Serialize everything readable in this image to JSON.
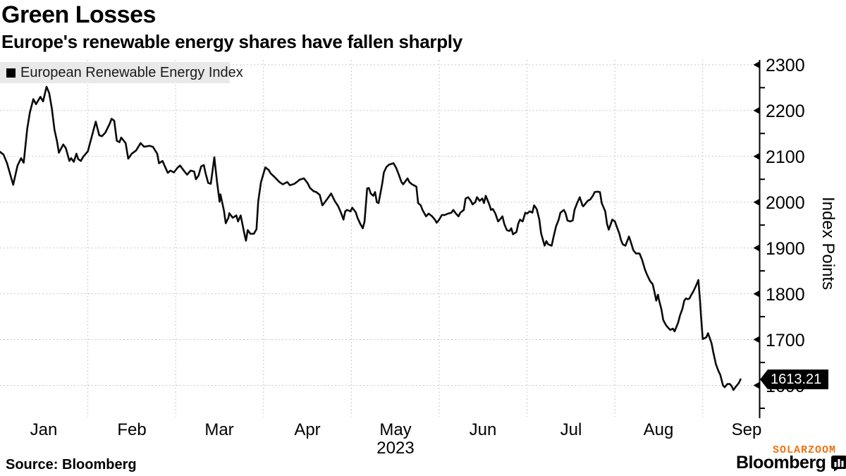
{
  "header": {
    "title": "Green Losses",
    "subtitle": "Europe's renewable energy shares have fallen sharply"
  },
  "legend": {
    "series_label": "European Renewable Energy Index"
  },
  "y_axis": {
    "label": "Index Points",
    "tick_labels": [
      "2300",
      "2200",
      "2100",
      "2000",
      "1900",
      "1800",
      "1700",
      "1600"
    ],
    "last_value_label": "1613.21"
  },
  "x_axis": {
    "tick_labels": [
      "Jan",
      "Feb",
      "Mar",
      "Apr",
      "May",
      "Jun",
      "Jul",
      "Aug",
      "Sep"
    ],
    "year_label": "2023"
  },
  "footer": {
    "source": "Source: Bloomberg",
    "watermark": "SOLARZOOM",
    "brand": "Bloomberg"
  },
  "colors": {
    "line": "#0a0a0a",
    "grid": "#c9c9c9",
    "legend_bg": "#e9e9e9",
    "badge_bg": "#000000",
    "badge_text": "#ffffff",
    "watermark_orange": "#ee7211"
  },
  "chart_data": {
    "type": "line",
    "title": "Green Losses",
    "subtitle": "Europe's renewable energy shares have fallen sharply",
    "series_name": "European Renewable Energy Index",
    "ylabel": "Index Points",
    "ylim": [
      1530,
      2330
    ],
    "y_ticks": [
      1600,
      1700,
      1800,
      1900,
      2000,
      2100,
      2200,
      2300
    ],
    "y_minor_ticks": [
      1550,
      1650,
      1750,
      1850,
      1950,
      2050,
      2150,
      2250
    ],
    "x_months": [
      "Jan",
      "Feb",
      "Mar",
      "Apr",
      "May",
      "Jun",
      "Jul",
      "Aug",
      "Sep"
    ],
    "year": "2023",
    "grid": true,
    "legend_position": "top-left",
    "last_value": 1613.21,
    "x_unit": "fractional month index, 0 = Jan 1 2023",
    "points": [
      [
        0.0,
        2110
      ],
      [
        0.04,
        2104
      ],
      [
        0.08,
        2085
      ],
      [
        0.15,
        2038
      ],
      [
        0.2,
        2080
      ],
      [
        0.24,
        2096
      ],
      [
        0.27,
        2086
      ],
      [
        0.31,
        2160
      ],
      [
        0.34,
        2196
      ],
      [
        0.38,
        2225
      ],
      [
        0.41,
        2214
      ],
      [
        0.46,
        2230
      ],
      [
        0.49,
        2220
      ],
      [
        0.53,
        2252
      ],
      [
        0.56,
        2238
      ],
      [
        0.59,
        2205
      ],
      [
        0.62,
        2158
      ],
      [
        0.65,
        2132
      ],
      [
        0.67,
        2108
      ],
      [
        0.72,
        2126
      ],
      [
        0.75,
        2118
      ],
      [
        0.79,
        2090
      ],
      [
        0.81,
        2096
      ],
      [
        0.84,
        2088
      ],
      [
        0.87,
        2106
      ],
      [
        0.89,
        2094
      ],
      [
        0.92,
        2090
      ],
      [
        0.95,
        2100
      ],
      [
        1.0,
        2111
      ],
      [
        1.04,
        2140
      ],
      [
        1.09,
        2176
      ],
      [
        1.13,
        2146
      ],
      [
        1.16,
        2144
      ],
      [
        1.2,
        2152
      ],
      [
        1.25,
        2172
      ],
      [
        1.27,
        2182
      ],
      [
        1.3,
        2178
      ],
      [
        1.33,
        2134
      ],
      [
        1.36,
        2131
      ],
      [
        1.38,
        2141
      ],
      [
        1.43,
        2129
      ],
      [
        1.46,
        2095
      ],
      [
        1.5,
        2106
      ],
      [
        1.55,
        2113
      ],
      [
        1.6,
        2129
      ],
      [
        1.64,
        2121
      ],
      [
        1.7,
        2123
      ],
      [
        1.74,
        2121
      ],
      [
        1.79,
        2106
      ],
      [
        1.81,
        2085
      ],
      [
        1.85,
        2090
      ],
      [
        1.88,
        2077
      ],
      [
        1.91,
        2064
      ],
      [
        1.94,
        2069
      ],
      [
        1.98,
        2065
      ],
      [
        2.02,
        2075
      ],
      [
        2.05,
        2080
      ],
      [
        2.08,
        2072
      ],
      [
        2.1,
        2067
      ],
      [
        2.13,
        2060
      ],
      [
        2.17,
        2069
      ],
      [
        2.21,
        2067
      ],
      [
        2.23,
        2050
      ],
      [
        2.26,
        2058
      ],
      [
        2.29,
        2078
      ],
      [
        2.32,
        2081
      ],
      [
        2.34,
        2063
      ],
      [
        2.37,
        2042
      ],
      [
        2.4,
        2040
      ],
      [
        2.42,
        2069
      ],
      [
        2.44,
        2098
      ],
      [
        2.47,
        2045
      ],
      [
        2.5,
        2001
      ],
      [
        2.51,
        2017
      ],
      [
        2.55,
        1981
      ],
      [
        2.57,
        1954
      ],
      [
        2.6,
        1966
      ],
      [
        2.61,
        1976
      ],
      [
        2.65,
        1966
      ],
      [
        2.69,
        1971
      ],
      [
        2.71,
        1958
      ],
      [
        2.74,
        1971
      ],
      [
        2.78,
        1933
      ],
      [
        2.8,
        1916
      ],
      [
        2.82,
        1939
      ],
      [
        2.85,
        1931
      ],
      [
        2.89,
        1931
      ],
      [
        2.92,
        1941
      ],
      [
        2.94,
        2002
      ],
      [
        2.97,
        2043
      ],
      [
        3.02,
        2076
      ],
      [
        3.06,
        2070
      ],
      [
        3.08,
        2063
      ],
      [
        3.13,
        2054
      ],
      [
        3.18,
        2044
      ],
      [
        3.22,
        2039
      ],
      [
        3.27,
        2044
      ],
      [
        3.3,
        2037
      ],
      [
        3.35,
        2040
      ],
      [
        3.38,
        2044
      ],
      [
        3.41,
        2049
      ],
      [
        3.46,
        2052
      ],
      [
        3.5,
        2042
      ],
      [
        3.53,
        2031
      ],
      [
        3.57,
        2024
      ],
      [
        3.6,
        2022
      ],
      [
        3.64,
        2016
      ],
      [
        3.67,
        1993
      ],
      [
        3.71,
        2003
      ],
      [
        3.74,
        2011
      ],
      [
        3.77,
        2019
      ],
      [
        3.81,
        2003
      ],
      [
        3.85,
        1991
      ],
      [
        3.88,
        1978
      ],
      [
        3.91,
        1962
      ],
      [
        3.93,
        1980
      ],
      [
        3.95,
        1983
      ],
      [
        3.99,
        1980
      ],
      [
        4.01,
        1988
      ],
      [
        4.05,
        1978
      ],
      [
        4.07,
        1966
      ],
      [
        4.1,
        1953
      ],
      [
        4.13,
        1943
      ],
      [
        4.15,
        1958
      ],
      [
        4.18,
        2030
      ],
      [
        4.2,
        2031
      ],
      [
        4.22,
        2019
      ],
      [
        4.25,
        2014
      ],
      [
        4.27,
        2022
      ],
      [
        4.29,
        2000
      ],
      [
        4.31,
        1998
      ],
      [
        4.35,
        2039
      ],
      [
        4.37,
        2065
      ],
      [
        4.4,
        2077
      ],
      [
        4.43,
        2082
      ],
      [
        4.48,
        2085
      ],
      [
        4.51,
        2075
      ],
      [
        4.54,
        2060
      ],
      [
        4.57,
        2044
      ],
      [
        4.59,
        2039
      ],
      [
        4.62,
        2047
      ],
      [
        4.64,
        2052
      ],
      [
        4.66,
        2044
      ],
      [
        4.69,
        2039
      ],
      [
        4.71,
        2037
      ],
      [
        4.74,
        2034
      ],
      [
        4.76,
        1998
      ],
      [
        4.79,
        1993
      ],
      [
        4.81,
        1983
      ],
      [
        4.85,
        1969
      ],
      [
        4.88,
        1975
      ],
      [
        4.9,
        1972
      ],
      [
        4.92,
        1969
      ],
      [
        4.95,
        1962
      ],
      [
        4.97,
        1955
      ],
      [
        5.0,
        1962
      ],
      [
        5.03,
        1972
      ],
      [
        5.06,
        1972
      ],
      [
        5.1,
        1975
      ],
      [
        5.14,
        1977
      ],
      [
        5.16,
        1983
      ],
      [
        5.19,
        1975
      ],
      [
        5.22,
        1969
      ],
      [
        5.24,
        1977
      ],
      [
        5.28,
        1983
      ],
      [
        5.3,
        2008
      ],
      [
        5.33,
        2011
      ],
      [
        5.36,
        2003
      ],
      [
        5.38,
        1995
      ],
      [
        5.41,
        2000
      ],
      [
        5.43,
        2011
      ],
      [
        5.46,
        2003
      ],
      [
        5.49,
        2008
      ],
      [
        5.51,
        1998
      ],
      [
        5.53,
        2014
      ],
      [
        5.57,
        1995
      ],
      [
        5.59,
        1983
      ],
      [
        5.61,
        1985
      ],
      [
        5.64,
        1975
      ],
      [
        5.67,
        1958
      ],
      [
        5.69,
        1962
      ],
      [
        5.72,
        1969
      ],
      [
        5.74,
        1953
      ],
      [
        5.77,
        1939
      ],
      [
        5.8,
        1937
      ],
      [
        5.82,
        1943
      ],
      [
        5.84,
        1930
      ],
      [
        5.88,
        1935
      ],
      [
        5.9,
        1953
      ],
      [
        5.92,
        1962
      ],
      [
        5.95,
        1958
      ],
      [
        5.98,
        1977
      ],
      [
        6.0,
        1975
      ],
      [
        6.03,
        1980
      ],
      [
        6.06,
        1977
      ],
      [
        6.08,
        1993
      ],
      [
        6.11,
        1985
      ],
      [
        6.14,
        1962
      ],
      [
        6.16,
        1932
      ],
      [
        6.2,
        1905
      ],
      [
        6.22,
        1915
      ],
      [
        6.24,
        1908
      ],
      [
        6.28,
        1905
      ],
      [
        6.3,
        1923
      ],
      [
        6.33,
        1947
      ],
      [
        6.36,
        1962
      ],
      [
        6.38,
        1977
      ],
      [
        6.42,
        1983
      ],
      [
        6.44,
        1975
      ],
      [
        6.46,
        1960
      ],
      [
        6.49,
        1958
      ],
      [
        6.52,
        1960
      ],
      [
        6.54,
        1983
      ],
      [
        6.57,
        1998
      ],
      [
        6.6,
        2011
      ],
      [
        6.63,
        1993
      ],
      [
        6.64,
        1991
      ],
      [
        6.67,
        1998
      ],
      [
        6.69,
        2003
      ],
      [
        6.72,
        2006
      ],
      [
        6.75,
        2014
      ],
      [
        6.77,
        2022
      ],
      [
        6.8,
        2023
      ],
      [
        6.83,
        2022
      ],
      [
        6.85,
        1998
      ],
      [
        6.89,
        1980
      ],
      [
        6.91,
        1953
      ],
      [
        6.93,
        1940
      ],
      [
        6.97,
        1962
      ],
      [
        7.0,
        1958
      ],
      [
        7.02,
        1947
      ],
      [
        7.05,
        1932
      ],
      [
        7.07,
        1917
      ],
      [
        7.09,
        1908
      ],
      [
        7.12,
        1905
      ],
      [
        7.16,
        1925
      ],
      [
        7.18,
        1914
      ],
      [
        7.21,
        1895
      ],
      [
        7.24,
        1888
      ],
      [
        7.28,
        1888
      ],
      [
        7.31,
        1874
      ],
      [
        7.34,
        1854
      ],
      [
        7.36,
        1844
      ],
      [
        7.4,
        1828
      ],
      [
        7.43,
        1821
      ],
      [
        7.45,
        1804
      ],
      [
        7.47,
        1785
      ],
      [
        7.49,
        1798
      ],
      [
        7.5,
        1788
      ],
      [
        7.53,
        1766
      ],
      [
        7.55,
        1743
      ],
      [
        7.58,
        1732
      ],
      [
        7.6,
        1727
      ],
      [
        7.63,
        1721
      ],
      [
        7.66,
        1724
      ],
      [
        7.68,
        1718
      ],
      [
        7.72,
        1737
      ],
      [
        7.74,
        1752
      ],
      [
        7.77,
        1768
      ],
      [
        7.79,
        1785
      ],
      [
        7.81,
        1790
      ],
      [
        7.83,
        1788
      ],
      [
        7.85,
        1790
      ],
      [
        7.87,
        1798
      ],
      [
        7.89,
        1804
      ],
      [
        7.92,
        1816
      ],
      [
        7.95,
        1830
      ],
      [
        7.97,
        1782
      ],
      [
        7.98,
        1752
      ],
      [
        8.0,
        1701
      ],
      [
        8.04,
        1705
      ],
      [
        8.06,
        1714
      ],
      [
        8.1,
        1692
      ],
      [
        8.12,
        1672
      ],
      [
        8.15,
        1646
      ],
      [
        8.18,
        1631
      ],
      [
        8.2,
        1623
      ],
      [
        8.23,
        1600
      ],
      [
        8.25,
        1596
      ],
      [
        8.28,
        1603
      ],
      [
        8.31,
        1603
      ],
      [
        8.33,
        1598
      ],
      [
        8.35,
        1590
      ],
      [
        8.38,
        1598
      ],
      [
        8.41,
        1605
      ],
      [
        8.43,
        1613.21
      ]
    ]
  }
}
